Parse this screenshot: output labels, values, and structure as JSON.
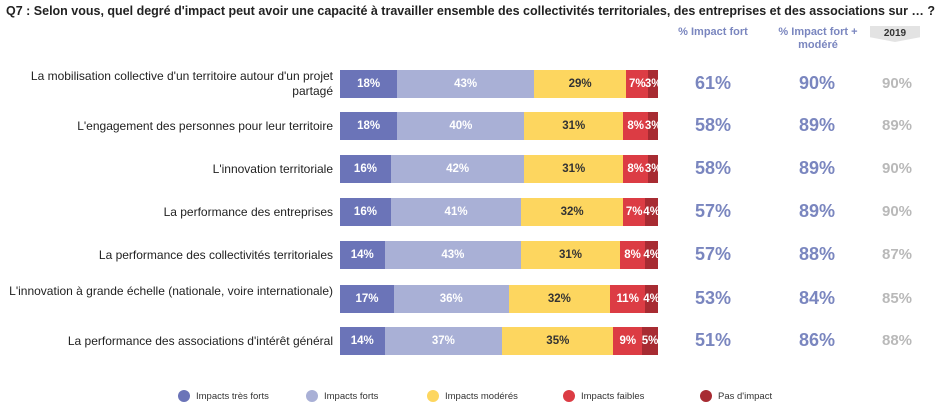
{
  "title": "Q7 : Selon vous, quel degré d'impact peut avoir une capacité à travailler ensemble des collectivités territoriales, des entreprises et des associations sur … ?",
  "headers": {
    "fort": "% Impact fort",
    "fort_modere": "% Impact fort + modéré",
    "year": "2019"
  },
  "colors": {
    "impacts_tres_forts": "#6b74b8",
    "impacts_forts": "#a9b0d6",
    "impacts_moderes": "#fdd65f",
    "impacts_faibles": "#dc3c44",
    "pas_impact": "#a72b32"
  },
  "chart_data": {
    "type": "bar",
    "orientation": "horizontal",
    "stacked": true,
    "normalized_to": 100,
    "categories": [
      "La mobilisation collective d'un territoire autour d'un projet partagé",
      "L'engagement des personnes pour leur territoire",
      "L'innovation territoriale",
      "La performance des entreprises",
      "La performance des collectivités territoriales",
      "L'innovation à grande échelle (nationale, voire internationale)",
      "La performance des associations d'intérêt général"
    ],
    "series": [
      {
        "name": "Impacts très forts",
        "values": [
          18,
          18,
          16,
          16,
          14,
          17,
          14
        ]
      },
      {
        "name": "Impacts forts",
        "values": [
          43,
          40,
          42,
          41,
          43,
          36,
          37
        ]
      },
      {
        "name": "Impacts modérés",
        "values": [
          29,
          31,
          31,
          32,
          31,
          32,
          35
        ]
      },
      {
        "name": "Impacts faibles",
        "values": [
          7,
          8,
          8,
          7,
          8,
          11,
          9
        ]
      },
      {
        "name": "Pas d'impact",
        "values": [
          3,
          3,
          3,
          4,
          4,
          4,
          5
        ]
      }
    ],
    "pct_impact_fort": [
      "61%",
      "58%",
      "58%",
      "57%",
      "57%",
      "53%",
      "51%"
    ],
    "pct_impact_fort_modere": [
      "90%",
      "89%",
      "89%",
      "89%",
      "88%",
      "84%",
      "86%"
    ],
    "pct_2019": [
      "90%",
      "89%",
      "90%",
      "90%",
      "87%",
      "85%",
      "88%"
    ],
    "legend_position": "bottom",
    "grid": false
  }
}
